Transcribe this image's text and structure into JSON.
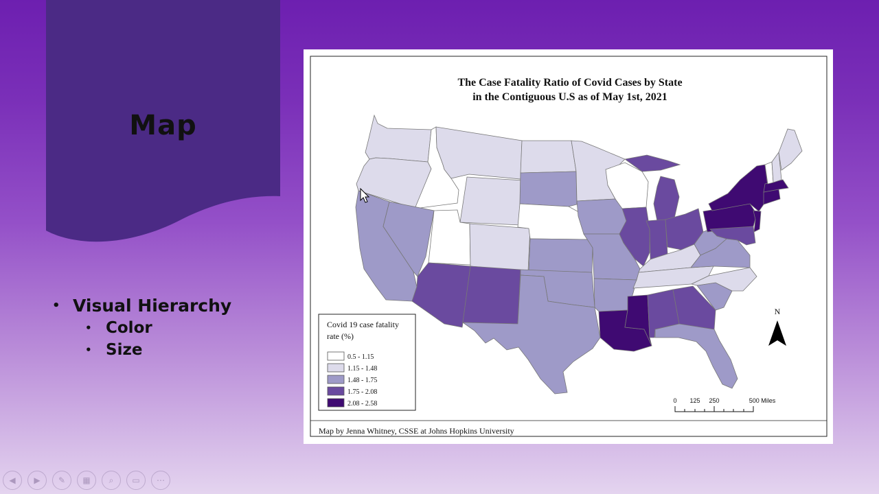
{
  "slide": {
    "title": "Map",
    "bullets": [
      {
        "text": "Visual Hierarchy",
        "level": 1
      },
      {
        "text": "Color",
        "level": 2
      },
      {
        "text": "Size",
        "level": 2
      }
    ]
  },
  "map": {
    "title_line1": "The Case Fatality Ratio of Covid Cases by State",
    "title_line2": "in the Contiguous U.S as of May 1st, 2021",
    "legend": {
      "title_line1": "Covid 19 case fatality",
      "title_line2": "rate (%)",
      "classes": [
        {
          "label": "0.5 - 1.15",
          "color": "#ffffff"
        },
        {
          "label": "1.15 - 1.48",
          "color": "#dddbeb"
        },
        {
          "label": "1.48 - 1.75",
          "color": "#9e9ac8"
        },
        {
          "label": "1.75 - 2.08",
          "color": "#6a4a9f"
        },
        {
          "label": "2.08 - 2.58",
          "color": "#3f0a72"
        }
      ]
    },
    "north_label": "N",
    "scale_labels": [
      "0",
      "125",
      "250",
      "500 Miles"
    ],
    "credit": "Map by Jenna Whitney, CSSE at Johns Hopkins University"
  },
  "colors": {
    "banner": "#4b2a85",
    "background_top": "#6d1fb0",
    "background_bottom": "#e4d4ef"
  },
  "toolbar_icons": [
    "previous-icon",
    "next-icon",
    "pen-icon",
    "slides-icon",
    "zoom-icon",
    "subtitles-icon",
    "more-icon"
  ]
}
